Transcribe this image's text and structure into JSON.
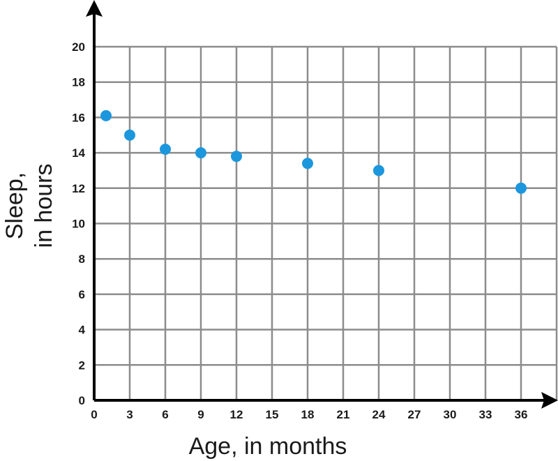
{
  "chart_data": {
    "type": "scatter",
    "title": "",
    "xlabel": "Age, in months",
    "ylabel_lines": [
      "Sleep,",
      "in hours"
    ],
    "xlim": [
      0,
      39
    ],
    "ylim": [
      0,
      20
    ],
    "grid": true,
    "x_ticks": [
      0,
      3,
      6,
      9,
      12,
      15,
      18,
      21,
      24,
      27,
      30,
      33,
      36
    ],
    "y_ticks": [
      0,
      2,
      4,
      6,
      8,
      10,
      12,
      14,
      16,
      18,
      20
    ],
    "point_color": "#1c97de",
    "grid_color": "#8c8c8c",
    "axis_color": "#000000",
    "points": [
      {
        "x": 1,
        "y": 16.1
      },
      {
        "x": 3,
        "y": 15.0
      },
      {
        "x": 6,
        "y": 14.2
      },
      {
        "x": 9,
        "y": 14.0
      },
      {
        "x": 12,
        "y": 13.8
      },
      {
        "x": 18,
        "y": 13.4
      },
      {
        "x": 24,
        "y": 13.0
      },
      {
        "x": 36,
        "y": 12.0
      }
    ]
  }
}
